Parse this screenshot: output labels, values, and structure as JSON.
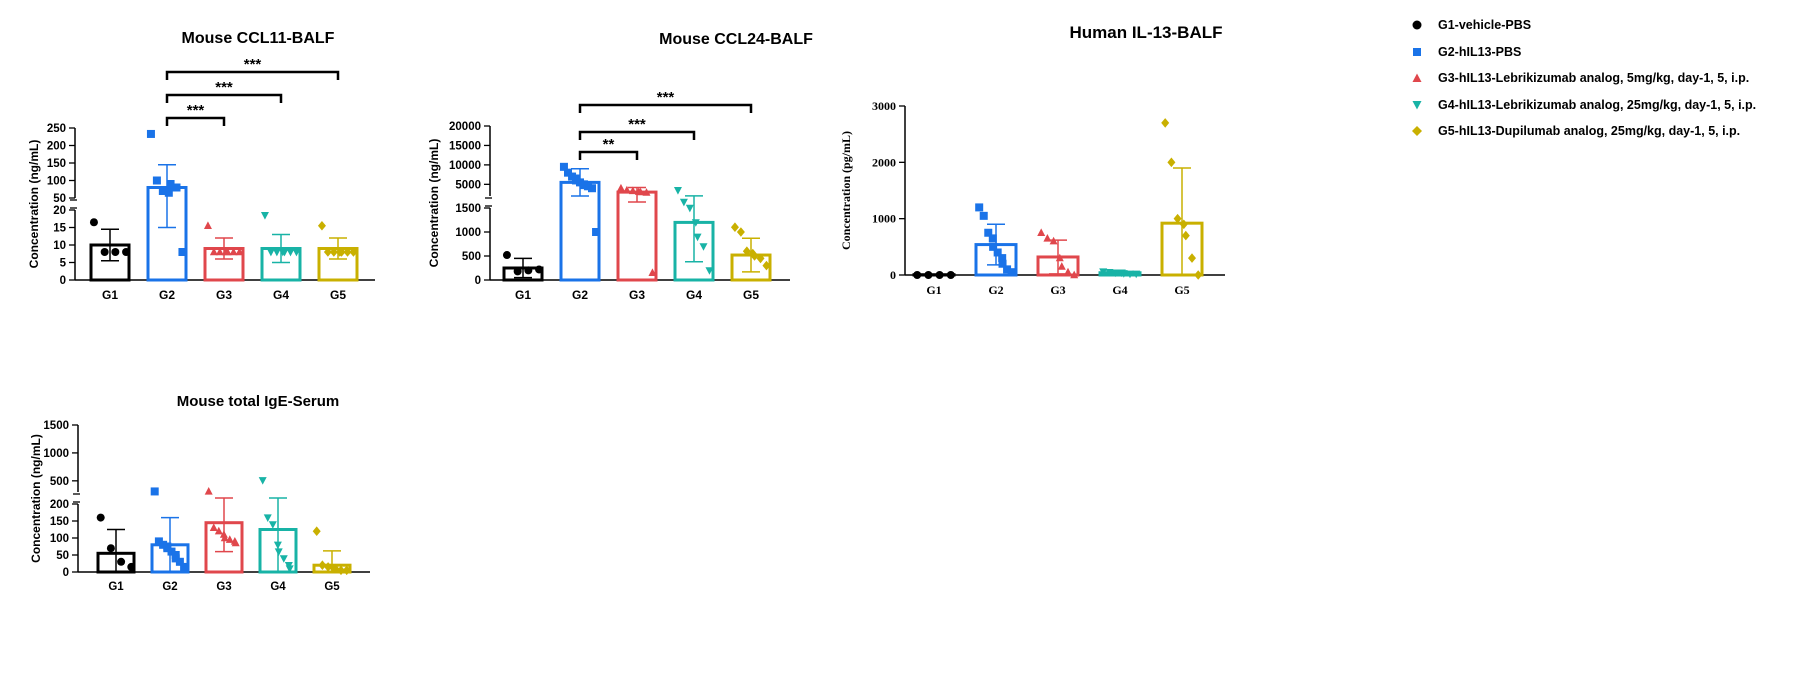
{
  "legend": {
    "items": [
      {
        "label": "G1-vehicle-PBS",
        "color": "#000000",
        "marker": "circle"
      },
      {
        "label": "G2-hIL13-PBS",
        "color": "#1a73e8",
        "marker": "square"
      },
      {
        "label": "G3-hIL13-Lebrikizumab analog, 5mg/kg, day-1, 5, i.p.",
        "color": "#e0474c",
        "marker": "triangle-up"
      },
      {
        "label": "G4-hIL13-Lebrikizumab analog, 25mg/kg, day-1, 5, i.p.",
        "color": "#18b3a6",
        "marker": "triangle-down"
      },
      {
        "label": "G5-hIL13-Dupilumab analog, 25mg/kg, day-1, 5, i.p.",
        "color": "#c9b000",
        "marker": "diamond"
      }
    ]
  },
  "chart_data": [
    {
      "type": "bar",
      "title": "Mouse CCL11-BALF",
      "xlabel": "",
      "ylabel": "Concentration (ng/mL)",
      "categories": [
        "G1",
        "G2",
        "G3",
        "G4",
        "G5"
      ],
      "axis_break": {
        "lower": [
          0,
          20
        ],
        "upper": [
          50,
          250
        ]
      },
      "lower_ticks": [
        "0",
        "5",
        "10",
        "15",
        "20"
      ],
      "upper_ticks": [
        "50",
        "100",
        "150",
        "200",
        "250"
      ],
      "means": [
        10,
        80,
        9,
        9,
        9
      ],
      "sd": [
        4.5,
        65,
        3,
        4,
        3
      ],
      "points": [
        [
          16.5,
          8,
          8,
          8
        ],
        [
          233,
          100,
          70,
          65,
          90,
          80,
          8
        ],
        [
          15.5,
          8,
          8,
          8,
          8,
          8,
          8
        ],
        [
          18.5,
          8,
          8,
          8,
          8,
          8,
          8
        ],
        [
          15.5,
          8,
          8,
          8,
          8,
          8,
          8
        ]
      ],
      "significance": [
        {
          "from": "G2",
          "to": "G3",
          "label": "***"
        },
        {
          "from": "G2",
          "to": "G4",
          "label": "***"
        },
        {
          "from": "G2",
          "to": "G5",
          "label": "***"
        }
      ]
    },
    {
      "type": "bar",
      "title": "Mouse CCL24-BALF",
      "xlabel": "",
      "ylabel": "Concentration (ng/mL)",
      "categories": [
        "G1",
        "G2",
        "G3",
        "G4",
        "G5"
      ],
      "axis_break": {
        "lower": [
          0,
          1500
        ],
        "upper": [
          2000,
          20000
        ]
      },
      "lower_ticks": [
        "0",
        "500",
        "1000",
        "1500"
      ],
      "upper_ticks": [
        "5000",
        "10000",
        "15000",
        "20000"
      ],
      "means": [
        250,
        5500,
        3000,
        1200,
        520
      ],
      "sd": [
        200,
        3500,
        1200,
        820,
        350
      ],
      "points": [
        [
          520,
          180,
          200,
          220
        ],
        [
          9500,
          8000,
          7000,
          6500,
          6000,
          5500,
          5000,
          4800,
          4500,
          4000,
          1000
        ],
        [
          4000,
          3500,
          3300,
          3100,
          3000,
          2900,
          150
        ],
        [
          3500,
          1800,
          1500,
          1200,
          900,
          700,
          200
        ],
        [
          1100,
          1000,
          600,
          550,
          500,
          450,
          300
        ]
      ],
      "significance": [
        {
          "from": "G2",
          "to": "G3",
          "label": "**"
        },
        {
          "from": "G2",
          "to": "G4",
          "label": "***"
        },
        {
          "from": "G2",
          "to": "G5",
          "label": "***"
        }
      ]
    },
    {
      "type": "bar",
      "title": "Human IL-13-BALF",
      "xlabel": "",
      "ylabel": "Concentration (pg/mL)",
      "categories": [
        "G1",
        "G2",
        "G3",
        "G4",
        "G5"
      ],
      "ylim": [
        0,
        3000
      ],
      "ticks": [
        "0",
        "1000",
        "2000",
        "3000"
      ],
      "means": [
        5,
        540,
        320,
        40,
        920
      ],
      "sd": [
        5,
        360,
        300,
        20,
        980
      ],
      "points": [
        [
          0,
          0,
          0,
          0
        ],
        [
          1200,
          1050,
          750,
          650,
          500,
          400,
          300,
          200,
          100,
          50
        ],
        [
          750,
          650,
          600,
          300,
          150,
          50,
          0
        ],
        [
          60,
          50,
          40,
          40,
          30,
          20,
          20
        ],
        [
          2700,
          2000,
          1000,
          900,
          700,
          300,
          0
        ]
      ],
      "significance": []
    },
    {
      "type": "bar",
      "title": "Mouse total IgE-Serum",
      "xlabel": "",
      "ylabel": "Concentration (ng/mL)",
      "categories": [
        "G1",
        "G2",
        "G3",
        "G4",
        "G5"
      ],
      "axis_break": {
        "lower": [
          0,
          200
        ],
        "upper": [
          300,
          1500
        ]
      },
      "lower_ticks": [
        "0",
        "50",
        "100",
        "150",
        "200"
      ],
      "upper_ticks": [
        "500",
        "1000",
        "1500"
      ],
      "means": [
        55,
        80,
        145,
        125,
        20
      ],
      "sd": [
        70,
        80,
        85,
        160,
        42
      ],
      "points": [
        [
          160,
          70,
          30,
          15
        ],
        [
          310,
          90,
          80,
          75,
          70,
          60,
          50,
          40,
          30,
          15
        ],
        [
          310,
          130,
          120,
          110,
          100,
          95,
          90,
          85
        ],
        [
          510,
          160,
          140,
          80,
          60,
          40,
          20,
          10
        ],
        [
          120,
          20,
          15,
          10,
          10,
          5,
          5
        ]
      ],
      "significance": []
    }
  ]
}
